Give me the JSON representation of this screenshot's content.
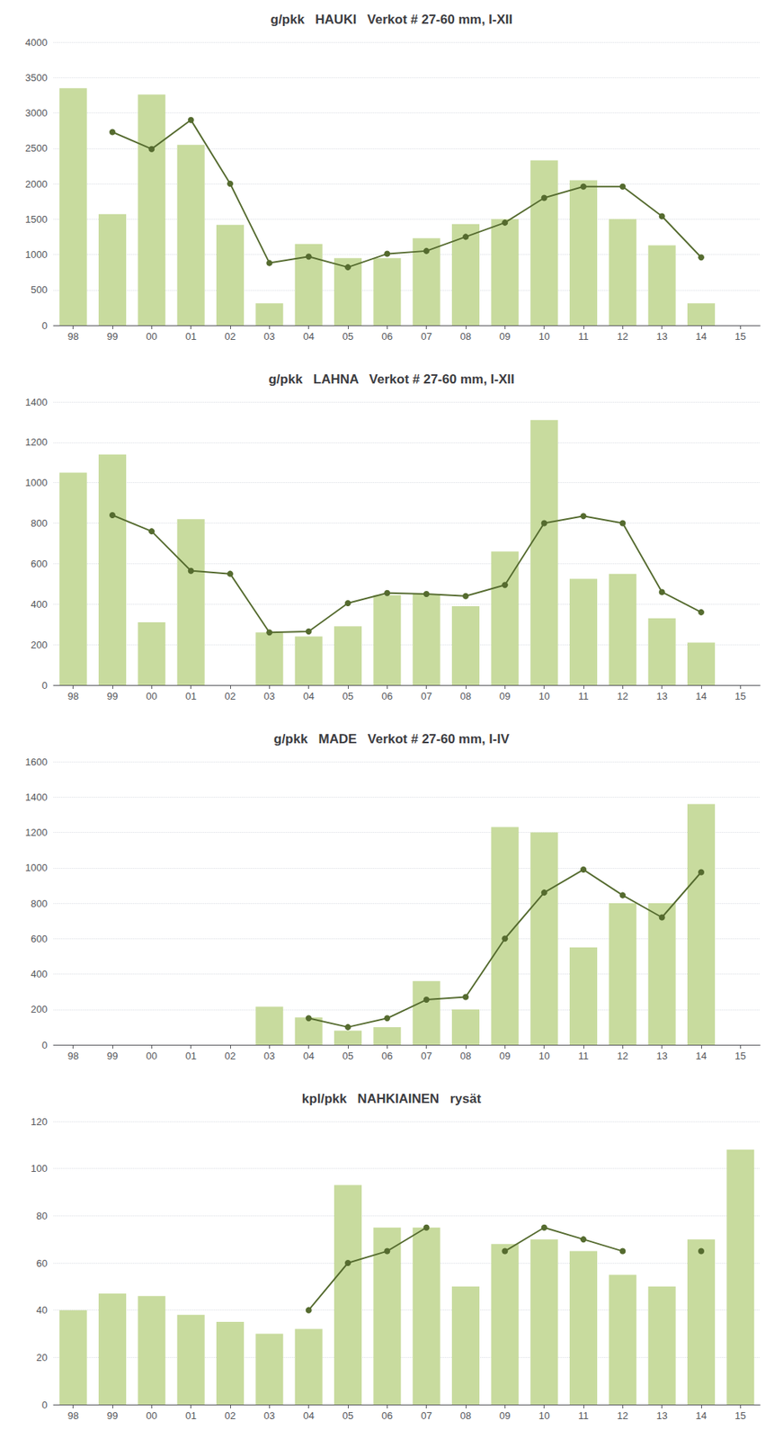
{
  "chart_data": [
    {
      "type": "bar",
      "title": "g/pkk   HAUKI   Verkot # 27-60 mm, I-XII",
      "categories": [
        "98",
        "99",
        "00",
        "01",
        "02",
        "03",
        "04",
        "05",
        "06",
        "07",
        "08",
        "09",
        "10",
        "11",
        "12",
        "13",
        "14",
        "15"
      ],
      "series": [
        {
          "type": "bar",
          "color": "#c8db9e",
          "values": [
            3350,
            1570,
            3260,
            2550,
            1420,
            310,
            1150,
            950,
            950,
            1230,
            1430,
            1500,
            2330,
            2050,
            1500,
            1130,
            310,
            null
          ]
        },
        {
          "type": "line",
          "color": "#556b2f",
          "marker": "circle",
          "values": [
            null,
            2730,
            2490,
            2900,
            2000,
            880,
            970,
            820,
            1010,
            1050,
            1250,
            1450,
            1800,
            1960,
            1960,
            1540,
            960,
            null
          ]
        }
      ],
      "ylim": [
        0,
        4000
      ],
      "yticks": [
        0,
        500,
        1000,
        1500,
        2000,
        2500,
        3000,
        3500,
        4000
      ],
      "grid": true
    },
    {
      "type": "bar",
      "title": "g/pkk   LAHNA   Verkot # 27-60 mm, I-XII",
      "categories": [
        "98",
        "99",
        "00",
        "01",
        "02",
        "03",
        "04",
        "05",
        "06",
        "07",
        "08",
        "09",
        "10",
        "11",
        "12",
        "13",
        "14",
        "15"
      ],
      "series": [
        {
          "type": "bar",
          "color": "#c8db9e",
          "values": [
            1050,
            1140,
            310,
            820,
            null,
            260,
            240,
            290,
            445,
            450,
            390,
            660,
            1310,
            525,
            550,
            330,
            210,
            null
          ]
        },
        {
          "type": "line",
          "color": "#556b2f",
          "marker": "circle",
          "values": [
            null,
            840,
            760,
            565,
            550,
            260,
            265,
            405,
            455,
            450,
            440,
            495,
            800,
            835,
            800,
            460,
            360,
            null
          ]
        }
      ],
      "ylim": [
        0,
        1400
      ],
      "yticks": [
        0,
        200,
        400,
        600,
        800,
        1000,
        1200,
        1400
      ],
      "grid": true
    },
    {
      "type": "bar",
      "title": "g/pkk   MADE   Verkot # 27-60 mm, I-IV",
      "categories": [
        "98",
        "99",
        "00",
        "01",
        "02",
        "03",
        "04",
        "05",
        "06",
        "07",
        "08",
        "09",
        "10",
        "11",
        "12",
        "13",
        "14",
        "15"
      ],
      "series": [
        {
          "type": "bar",
          "color": "#c8db9e",
          "values": [
            null,
            null,
            null,
            null,
            null,
            215,
            155,
            80,
            100,
            360,
            200,
            1230,
            1200,
            550,
            800,
            800,
            1360,
            null
          ]
        },
        {
          "type": "line",
          "color": "#556b2f",
          "marker": "circle",
          "values": [
            null,
            null,
            null,
            null,
            null,
            null,
            150,
            100,
            150,
            255,
            270,
            600,
            860,
            990,
            845,
            720,
            975,
            null
          ]
        }
      ],
      "ylim": [
        0,
        1600
      ],
      "yticks": [
        0,
        200,
        400,
        600,
        800,
        1000,
        1200,
        1400,
        1600
      ],
      "grid": true
    },
    {
      "type": "bar",
      "title": "kpl/pkk   NAHKIAINEN   rysät",
      "categories": [
        "98",
        "99",
        "00",
        "01",
        "02",
        "03",
        "04",
        "05",
        "06",
        "07",
        "08",
        "09",
        "10",
        "11",
        "12",
        "13",
        "14",
        "15"
      ],
      "series": [
        {
          "type": "bar",
          "color": "#c8db9e",
          "values": [
            40,
            47,
            46,
            38,
            35,
            30,
            32,
            93,
            75,
            75,
            50,
            68,
            70,
            65,
            55,
            50,
            70,
            108
          ]
        },
        {
          "type": "line",
          "color": "#556b2f",
          "marker": "circle",
          "values": [
            null,
            null,
            null,
            null,
            null,
            null,
            40,
            60,
            65,
            75,
            null,
            65,
            75,
            70,
            65,
            null,
            65,
            null
          ]
        }
      ],
      "ylim": [
        0,
        120
      ],
      "yticks": [
        0,
        20,
        40,
        60,
        80,
        100,
        120
      ],
      "grid": true
    }
  ]
}
